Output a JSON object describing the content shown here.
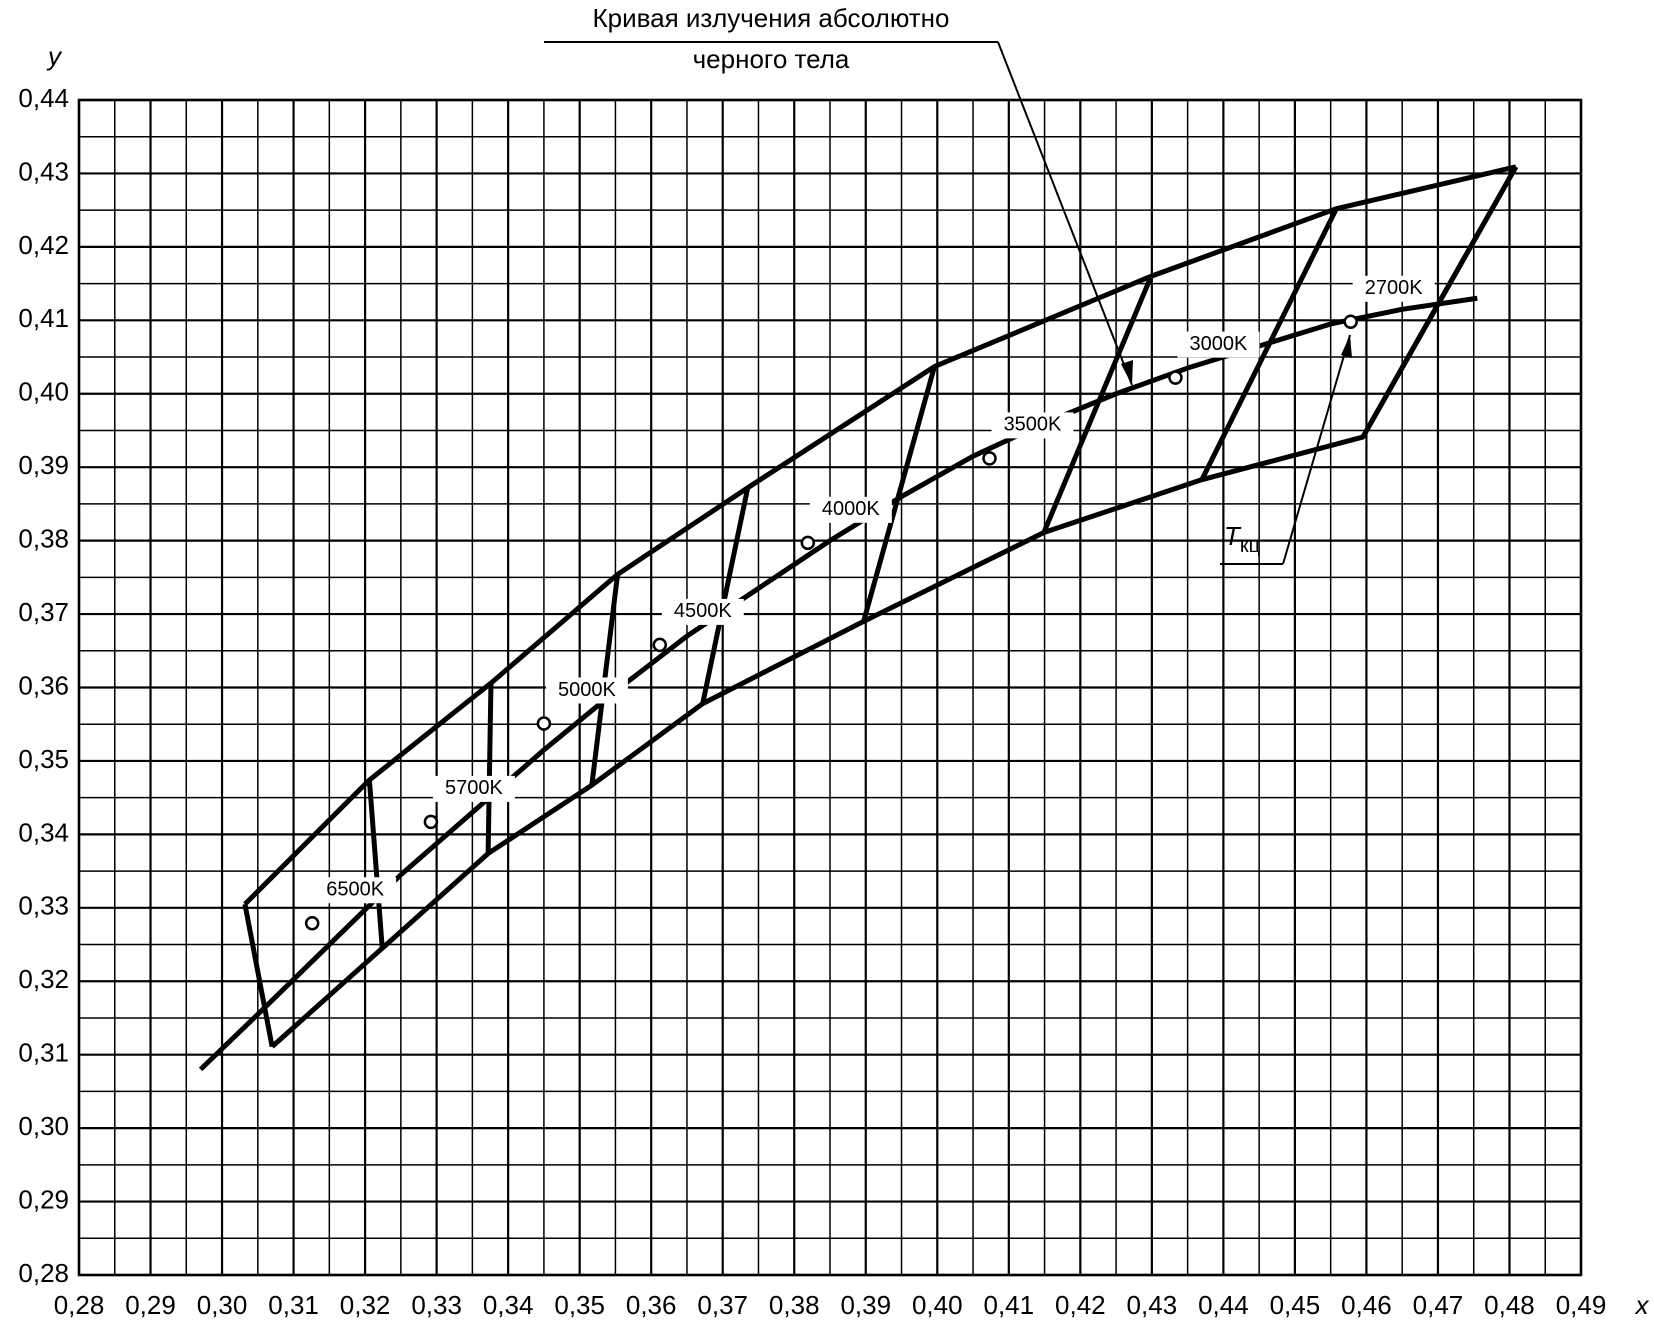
{
  "chart_data": {
    "type": "line",
    "xlabel": "x",
    "ylabel": "y",
    "xlim": [
      0.28,
      0.49
    ],
    "ylim": [
      0.28,
      0.44
    ],
    "xticks": [
      {
        "value": 0.28,
        "label": "0,28"
      },
      {
        "value": 0.29,
        "label": "0,29"
      },
      {
        "value": 0.3,
        "label": "0,30"
      },
      {
        "value": 0.31,
        "label": "0,31"
      },
      {
        "value": 0.32,
        "label": "0,32"
      },
      {
        "value": 0.33,
        "label": "0,33"
      },
      {
        "value": 0.34,
        "label": "0,34"
      },
      {
        "value": 0.35,
        "label": "0,35"
      },
      {
        "value": 0.36,
        "label": "0,36"
      },
      {
        "value": 0.37,
        "label": "0,37"
      },
      {
        "value": 0.38,
        "label": "0,38"
      },
      {
        "value": 0.39,
        "label": "0,39"
      },
      {
        "value": 0.4,
        "label": "0,40"
      },
      {
        "value": 0.41,
        "label": "0,41"
      },
      {
        "value": 0.42,
        "label": "0,42"
      },
      {
        "value": 0.43,
        "label": "0,43"
      },
      {
        "value": 0.44,
        "label": "0,44"
      },
      {
        "value": 0.45,
        "label": "0,45"
      },
      {
        "value": 0.46,
        "label": "0,46"
      },
      {
        "value": 0.47,
        "label": "0,47"
      },
      {
        "value": 0.48,
        "label": "0,48"
      },
      {
        "value": 0.49,
        "label": "0,49"
      }
    ],
    "yticks": [
      {
        "value": 0.28,
        "label": "0,28"
      },
      {
        "value": 0.29,
        "label": "0,29"
      },
      {
        "value": 0.3,
        "label": "0,30"
      },
      {
        "value": 0.31,
        "label": "0,31"
      },
      {
        "value": 0.32,
        "label": "0,32"
      },
      {
        "value": 0.33,
        "label": "0,33"
      },
      {
        "value": 0.34,
        "label": "0,34"
      },
      {
        "value": 0.35,
        "label": "0,35"
      },
      {
        "value": 0.36,
        "label": "0,36"
      },
      {
        "value": 0.37,
        "label": "0,37"
      },
      {
        "value": 0.38,
        "label": "0,38"
      },
      {
        "value": 0.39,
        "label": "0,39"
      },
      {
        "value": 0.4,
        "label": "0,40"
      },
      {
        "value": 0.41,
        "label": "0,41"
      },
      {
        "value": 0.42,
        "label": "0,42"
      },
      {
        "value": 0.43,
        "label": "0,43"
      },
      {
        "value": 0.44,
        "label": "0,44"
      }
    ],
    "grid": true,
    "minor_grid": true,
    "series": [
      {
        "color": "#000000",
        "x": [
          0.297,
          0.305,
          0.315,
          0.325,
          0.335,
          0.345,
          0.355,
          0.365,
          0.375,
          0.385,
          0.395,
          0.405,
          0.415,
          0.425,
          0.435,
          0.445,
          0.455,
          0.465,
          0.4755
        ],
        "y": [
          0.308,
          0.3155,
          0.325,
          0.3345,
          0.343,
          0.3515,
          0.3595,
          0.367,
          0.3735,
          0.38,
          0.386,
          0.3915,
          0.396,
          0.4,
          0.4035,
          0.4065,
          0.4095,
          0.4115,
          0.413
        ]
      },
      {
        "color": "#000000",
        "x": [
          0.3032,
          0.3206,
          0.3376,
          0.3553,
          0.3735,
          0.3996,
          0.4299,
          0.4558,
          0.4809
        ],
        "y": [
          0.3305,
          0.3474,
          0.3606,
          0.3754,
          0.3872,
          0.4037,
          0.416,
          0.4252,
          0.4309
        ]
      },
      {
        "color": "#000000",
        "x": [
          0.307,
          0.3224,
          0.3372,
          0.3517,
          0.3672,
          0.3897,
          0.4149,
          0.437,
          0.4595,
          0.4809
        ],
        "y": [
          0.3111,
          0.3245,
          0.3374,
          0.3467,
          0.3578,
          0.369,
          0.3811,
          0.3883,
          0.3941,
          0.4309
        ]
      },
      {
        "color": "#000000",
        "x": [
          0.3032,
          0.307
        ],
        "y": [
          0.3305,
          0.3111
        ]
      },
      {
        "color": "#000000",
        "x": [
          0.3206,
          0.3224
        ],
        "y": [
          0.3474,
          0.3245
        ]
      },
      {
        "color": "#000000",
        "x": [
          0.3376,
          0.3372
        ],
        "y": [
          0.3606,
          0.3374
        ]
      },
      {
        "color": "#000000",
        "x": [
          0.3553,
          0.3517
        ],
        "y": [
          0.3754,
          0.3467
        ]
      },
      {
        "color": "#000000",
        "x": [
          0.3735,
          0.3672
        ],
        "y": [
          0.3872,
          0.3578
        ]
      },
      {
        "color": "#000000",
        "x": [
          0.3996,
          0.3897
        ],
        "y": [
          0.4037,
          0.369
        ]
      },
      {
        "color": "#000000",
        "x": [
          0.4299,
          0.4149
        ],
        "y": [
          0.416,
          0.3811
        ]
      },
      {
        "color": "#000000",
        "x": [
          0.4558,
          0.437
        ],
        "y": [
          0.4252,
          0.3883
        ]
      },
      {
        "color": "#000000",
        "x": [
          0.4809,
          0.4595
        ],
        "y": [
          0.4309,
          0.3941
        ]
      }
    ],
    "points": {
      "x": [
        0.3126,
        0.3292,
        0.345,
        0.3612,
        0.3819,
        0.4073,
        0.4333,
        0.4578
      ],
      "y": [
        0.3279,
        0.3417,
        0.3551,
        0.3658,
        0.3797,
        0.3912,
        0.4022,
        0.4098
      ],
      "labels": [
        "6500K",
        "5700K",
        "5000K",
        "4500K",
        "4000K",
        "3500K",
        "3000K",
        "2700K"
      ]
    },
    "annotations": {
      "blackbody": [
        "Кривая излучения абсолютно",
        "черного тела"
      ],
      "tkc": {
        "text": "T",
        "subscript": "кц"
      }
    }
  }
}
